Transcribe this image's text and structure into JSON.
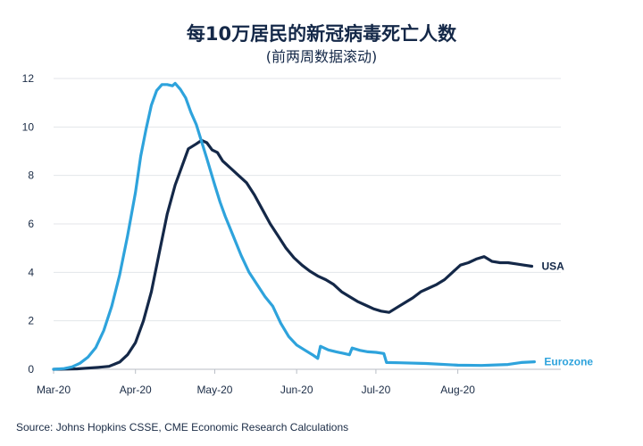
{
  "title": "每10万居民的新冠病毒死亡人数",
  "subtitle": "(前两周数据滚动)",
  "source": "Source: Johns Hopkins CSSE, CME Economic Research Calculations",
  "chart_data": {
    "type": "line",
    "ylim": [
      0,
      12
    ],
    "yticks": [
      0,
      2,
      4,
      6,
      8,
      10,
      12
    ],
    "xlim": [
      "2020-03-01",
      "2020-09-09"
    ],
    "xticks": [
      {
        "date": "2020-03-01",
        "label": "Mar-20"
      },
      {
        "date": "2020-04-01",
        "label": "Apr-20"
      },
      {
        "date": "2020-05-01",
        "label": "May-20"
      },
      {
        "date": "2020-06-01",
        "label": "Jun-20"
      },
      {
        "date": "2020-07-01",
        "label": "Jul-20"
      },
      {
        "date": "2020-08-01",
        "label": "Aug-20"
      }
    ],
    "grid": "horizontal",
    "series": [
      {
        "name": "USA",
        "color": "#142848",
        "points": [
          [
            "2020-03-01",
            0.0
          ],
          [
            "2020-03-10",
            0.02
          ],
          [
            "2020-03-18",
            0.08
          ],
          [
            "2020-03-22",
            0.12
          ],
          [
            "2020-03-26",
            0.3
          ],
          [
            "2020-03-29",
            0.6
          ],
          [
            "2020-04-01",
            1.1
          ],
          [
            "2020-04-04",
            2.0
          ],
          [
            "2020-04-07",
            3.2
          ],
          [
            "2020-04-10",
            4.8
          ],
          [
            "2020-04-13",
            6.4
          ],
          [
            "2020-04-16",
            7.6
          ],
          [
            "2020-04-19",
            8.5
          ],
          [
            "2020-04-21",
            9.1
          ],
          [
            "2020-04-24",
            9.3
          ],
          [
            "2020-04-26",
            9.45
          ],
          [
            "2020-04-28",
            9.35
          ],
          [
            "2020-04-30",
            9.05
          ],
          [
            "2020-05-02",
            8.95
          ],
          [
            "2020-05-04",
            8.6
          ],
          [
            "2020-05-07",
            8.3
          ],
          [
            "2020-05-10",
            8.0
          ],
          [
            "2020-05-13",
            7.7
          ],
          [
            "2020-05-16",
            7.2
          ],
          [
            "2020-05-19",
            6.6
          ],
          [
            "2020-05-22",
            6.0
          ],
          [
            "2020-05-25",
            5.5
          ],
          [
            "2020-05-28",
            5.0
          ],
          [
            "2020-05-31",
            4.6
          ],
          [
            "2020-06-03",
            4.3
          ],
          [
            "2020-06-06",
            4.05
          ],
          [
            "2020-06-09",
            3.85
          ],
          [
            "2020-06-12",
            3.7
          ],
          [
            "2020-06-15",
            3.5
          ],
          [
            "2020-06-18",
            3.2
          ],
          [
            "2020-06-21",
            3.0
          ],
          [
            "2020-06-24",
            2.8
          ],
          [
            "2020-06-27",
            2.65
          ],
          [
            "2020-06-30",
            2.5
          ],
          [
            "2020-07-03",
            2.4
          ],
          [
            "2020-07-06",
            2.35
          ],
          [
            "2020-07-09",
            2.55
          ],
          [
            "2020-07-12",
            2.75
          ],
          [
            "2020-07-15",
            2.95
          ],
          [
            "2020-07-18",
            3.2
          ],
          [
            "2020-07-21",
            3.35
          ],
          [
            "2020-07-24",
            3.5
          ],
          [
            "2020-07-27",
            3.7
          ],
          [
            "2020-07-30",
            4.0
          ],
          [
            "2020-08-02",
            4.3
          ],
          [
            "2020-08-05",
            4.4
          ],
          [
            "2020-08-08",
            4.55
          ],
          [
            "2020-08-11",
            4.65
          ],
          [
            "2020-08-14",
            4.45
          ],
          [
            "2020-08-17",
            4.4
          ],
          [
            "2020-08-20",
            4.4
          ],
          [
            "2020-08-23",
            4.35
          ],
          [
            "2020-08-26",
            4.3
          ],
          [
            "2020-08-29",
            4.25
          ]
        ]
      },
      {
        "name": "Eurozone",
        "color": "#2ea3dc",
        "points": [
          [
            "2020-03-01",
            0.0
          ],
          [
            "2020-03-05",
            0.03
          ],
          [
            "2020-03-08",
            0.1
          ],
          [
            "2020-03-11",
            0.25
          ],
          [
            "2020-03-14",
            0.5
          ],
          [
            "2020-03-17",
            0.9
          ],
          [
            "2020-03-20",
            1.6
          ],
          [
            "2020-03-23",
            2.6
          ],
          [
            "2020-03-26",
            3.9
          ],
          [
            "2020-03-29",
            5.5
          ],
          [
            "2020-04-01",
            7.3
          ],
          [
            "2020-04-03",
            8.8
          ],
          [
            "2020-04-05",
            9.9
          ],
          [
            "2020-04-07",
            10.9
          ],
          [
            "2020-04-09",
            11.5
          ],
          [
            "2020-04-11",
            11.75
          ],
          [
            "2020-04-13",
            11.75
          ],
          [
            "2020-04-15",
            11.7
          ],
          [
            "2020-04-16",
            11.8
          ],
          [
            "2020-04-18",
            11.55
          ],
          [
            "2020-04-20",
            11.2
          ],
          [
            "2020-04-22",
            10.6
          ],
          [
            "2020-04-24",
            10.1
          ],
          [
            "2020-04-26",
            9.4
          ],
          [
            "2020-04-28",
            8.7
          ],
          [
            "2020-05-01",
            7.6
          ],
          [
            "2020-05-03",
            6.9
          ],
          [
            "2020-05-05",
            6.3
          ],
          [
            "2020-05-08",
            5.5
          ],
          [
            "2020-05-11",
            4.7
          ],
          [
            "2020-05-14",
            4.0
          ],
          [
            "2020-05-17",
            3.5
          ],
          [
            "2020-05-20",
            3.0
          ],
          [
            "2020-05-23",
            2.6
          ],
          [
            "2020-05-26",
            1.9
          ],
          [
            "2020-05-29",
            1.35
          ],
          [
            "2020-06-01",
            1.0
          ],
          [
            "2020-06-04",
            0.8
          ],
          [
            "2020-06-07",
            0.6
          ],
          [
            "2020-06-09",
            0.45
          ],
          [
            "2020-06-10",
            0.95
          ],
          [
            "2020-06-13",
            0.8
          ],
          [
            "2020-06-16",
            0.72
          ],
          [
            "2020-06-19",
            0.65
          ],
          [
            "2020-06-21",
            0.6
          ],
          [
            "2020-06-22",
            0.88
          ],
          [
            "2020-06-25",
            0.78
          ],
          [
            "2020-06-28",
            0.72
          ],
          [
            "2020-07-01",
            0.7
          ],
          [
            "2020-07-04",
            0.65
          ],
          [
            "2020-07-05",
            0.28
          ],
          [
            "2020-07-10",
            0.27
          ],
          [
            "2020-07-20",
            0.24
          ],
          [
            "2020-08-01",
            0.17
          ],
          [
            "2020-08-10",
            0.16
          ],
          [
            "2020-08-20",
            0.2
          ],
          [
            "2020-08-25",
            0.28
          ],
          [
            "2020-08-30",
            0.31
          ]
        ]
      }
    ]
  }
}
